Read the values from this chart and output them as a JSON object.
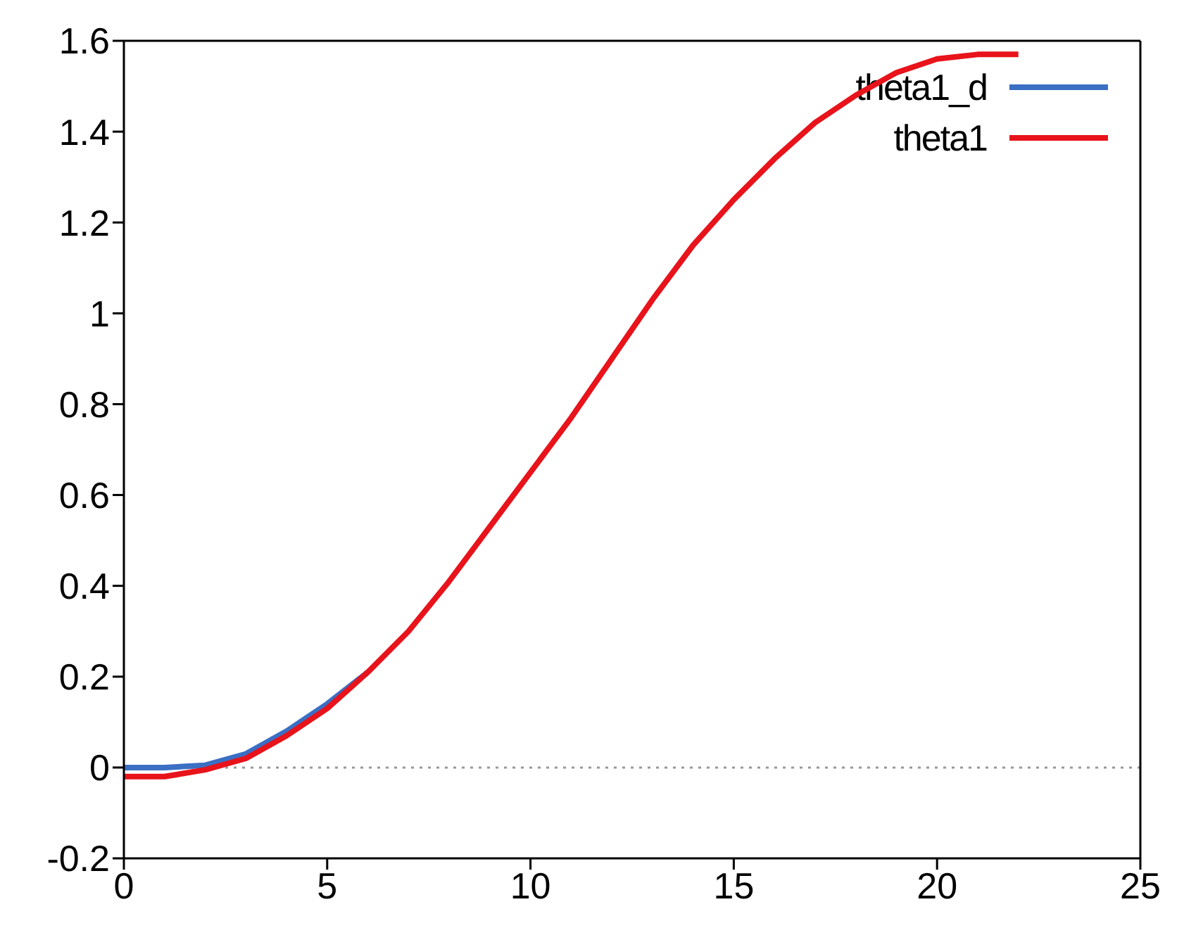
{
  "chart_data": {
    "type": "line",
    "x": [
      0,
      1,
      2,
      3,
      4,
      5,
      6,
      7,
      8,
      9,
      10,
      11,
      12,
      13,
      14,
      15,
      16,
      17,
      18,
      19,
      20,
      21,
      22
    ],
    "series": [
      {
        "name": "theta1_d",
        "color": "#3a6fc4",
        "values": [
          0,
          0,
          0.005,
          0.03,
          0.08,
          0.14,
          0.21,
          null,
          null,
          null,
          null,
          null,
          null,
          null,
          null,
          null,
          null,
          null,
          null,
          null,
          null,
          null,
          null
        ]
      },
      {
        "name": "theta1",
        "color": "#e8131b",
        "values": [
          -0.02,
          -0.02,
          -0.005,
          0.02,
          0.07,
          0.13,
          0.21,
          0.3,
          0.41,
          0.53,
          0.65,
          0.77,
          0.9,
          1.03,
          1.15,
          1.25,
          1.34,
          1.42,
          1.48,
          1.53,
          1.56,
          1.57,
          1.57
        ]
      }
    ],
    "xlim": [
      0,
      25
    ],
    "xticks": [
      0,
      5,
      10,
      15,
      20,
      25
    ],
    "ylim": [
      -0.2,
      1.6
    ],
    "yticks": [
      -0.2,
      0,
      0.2,
      0.4,
      0.6,
      0.8,
      1,
      1.2,
      1.4,
      1.6
    ],
    "ref_lines": [
      {
        "axis": "y",
        "value": 0,
        "color": "#999999",
        "line_style": "dotted"
      }
    ],
    "grid": false,
    "legend": "top right",
    "marker": "none",
    "line_style": "solid"
  }
}
